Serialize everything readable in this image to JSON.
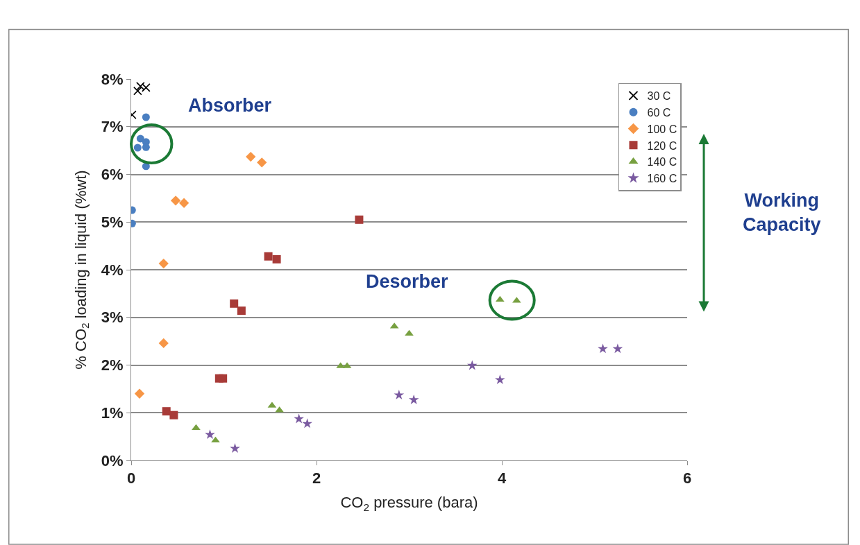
{
  "chart_data": {
    "type": "scatter",
    "xlabel": "CO$_{2}$ pressure (bara)",
    "ylabel": "% CO$_{2}$ loading in liquid (%wt)",
    "xlim": [
      0,
      6
    ],
    "xticks": [
      0,
      2,
      4,
      6
    ],
    "ylim": [
      0,
      8
    ],
    "yticks": [
      {
        "value": 0,
        "label": "0%"
      },
      {
        "value": 1,
        "label": "1%"
      },
      {
        "value": 2,
        "label": "2%"
      },
      {
        "value": 3,
        "label": "3%"
      },
      {
        "value": 4,
        "label": "4%"
      },
      {
        "value": 5,
        "label": "5%"
      },
      {
        "value": 6,
        "label": "6%"
      },
      {
        "value": 7,
        "label": "7%"
      },
      {
        "value": 8,
        "label": "8%"
      }
    ],
    "grid": "y",
    "legend": "top right",
    "annotations": [
      "Absorber",
      "Desorber",
      "Working Capacity"
    ],
    "series": [
      {
        "name": "30 C",
        "color": "#000000",
        "marker": "cross",
        "x": [
          0.01,
          0.07,
          0.1,
          0.16
        ],
        "values": [
          7.25,
          7.75,
          7.85,
          7.82
        ]
      },
      {
        "name": "60 C",
        "color": "#4a7fc1",
        "marker": "circle",
        "x": [
          0.16,
          0.1,
          0.16,
          0.16,
          0.07,
          0.16,
          0.01,
          0.01
        ],
        "values": [
          7.2,
          6.75,
          6.68,
          6.57,
          6.56,
          6.17,
          5.25,
          4.97
        ]
      },
      {
        "name": "100 C",
        "color": "#f79646",
        "marker": "diamond",
        "x": [
          1.29,
          1.41,
          0.48,
          0.57,
          0.35,
          0.35,
          0.09
        ],
        "values": [
          6.37,
          6.25,
          5.45,
          5.4,
          4.13,
          2.46,
          1.4
        ]
      },
      {
        "name": "120 C",
        "color": "#a83b38",
        "marker": "square",
        "x": [
          2.46,
          1.48,
          1.57,
          1.11,
          1.19,
          0.95,
          0.99,
          0.38,
          0.46
        ],
        "values": [
          5.05,
          4.28,
          4.22,
          3.29,
          3.14,
          1.72,
          1.72,
          1.03,
          0.95
        ]
      },
      {
        "name": "140 C",
        "color": "#77a040",
        "marker": "triangle",
        "x": [
          0.7,
          0.91,
          1.52,
          1.6,
          2.26,
          2.33,
          2.84,
          3.0,
          3.98,
          4.16
        ],
        "values": [
          0.68,
          0.42,
          1.15,
          1.05,
          1.98,
          1.98,
          2.81,
          2.66,
          3.37,
          3.35
        ]
      },
      {
        "name": "160 C",
        "color": "#7a5aa0",
        "marker": "star",
        "x": [
          0.85,
          1.12,
          1.81,
          1.9,
          2.89,
          3.05,
          3.68,
          3.98,
          5.09,
          5.25
        ],
        "values": [
          0.54,
          0.25,
          0.87,
          0.77,
          1.37,
          1.27,
          1.99,
          1.69,
          2.34,
          2.34
        ]
      }
    ]
  }
}
